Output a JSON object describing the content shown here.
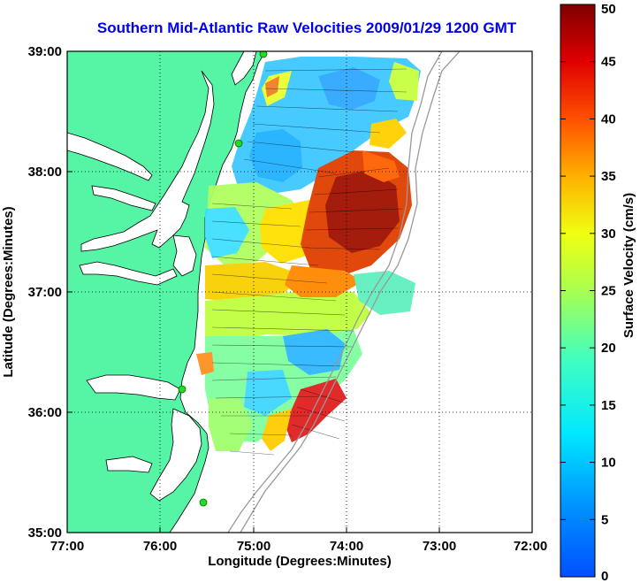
{
  "title": "Southern Mid-Atlantic Raw Velocities 2009/01/29 1200 GMT",
  "map": {
    "xlabel": "Longitude (Degrees:Minutes)",
    "ylabel": "Latitude (Degrees:Minutes)",
    "x_ticks": [
      "77:00",
      "76:00",
      "75:00",
      "74:00",
      "73:00",
      "72:00"
    ],
    "y_ticks": [
      "39:00",
      "38:00",
      "37:00",
      "36:00",
      "35:00"
    ],
    "grid": "dotted",
    "land_color": "#55f5a5",
    "stations_color": "#22dd22"
  },
  "colorbar": {
    "label": "Surface Velocity (cm/s)",
    "ticks": [
      "50",
      "45",
      "40",
      "35",
      "30",
      "25",
      "20",
      "15",
      "10",
      "5",
      "0"
    ],
    "range": [
      0,
      50
    ],
    "colormap": "jet"
  }
}
